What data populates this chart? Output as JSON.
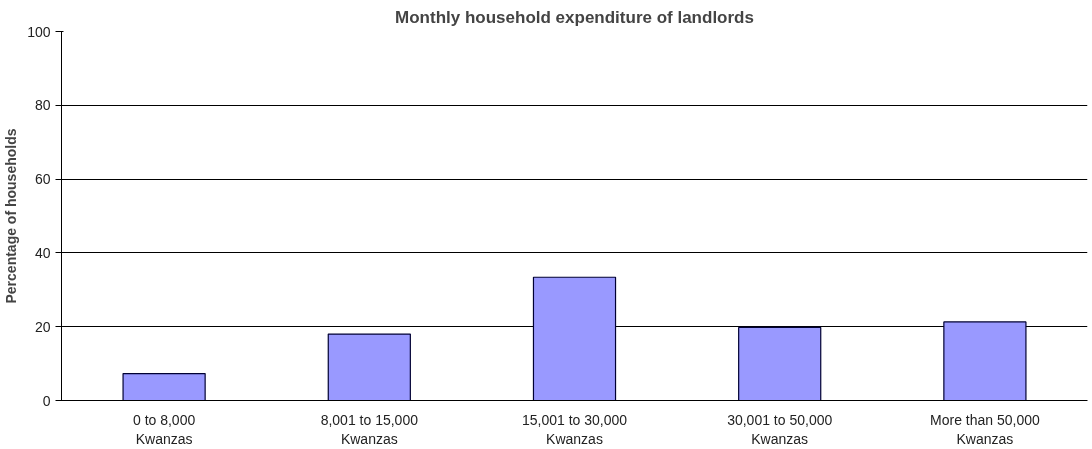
{
  "chart_data": {
    "type": "bar",
    "title": "Monthly household expenditure of landlords",
    "ylabel": "Percentage of households",
    "categories": [
      "0 to 8,000\nKwanzas",
      "8,001 to 15,000\nKwanzas",
      "15,001 to 30,000\nKwanzas",
      "30,001 to 50,000\nKwanzas",
      "More than 50,000\nKwanzas"
    ],
    "values": [
      7.3,
      18,
      33.4,
      19.8,
      21.3
    ],
    "color": "#9999ff",
    "ylim": [
      0,
      100
    ],
    "yticks": [
      0,
      20,
      40,
      60,
      80,
      100
    ],
    "grid": "y"
  }
}
